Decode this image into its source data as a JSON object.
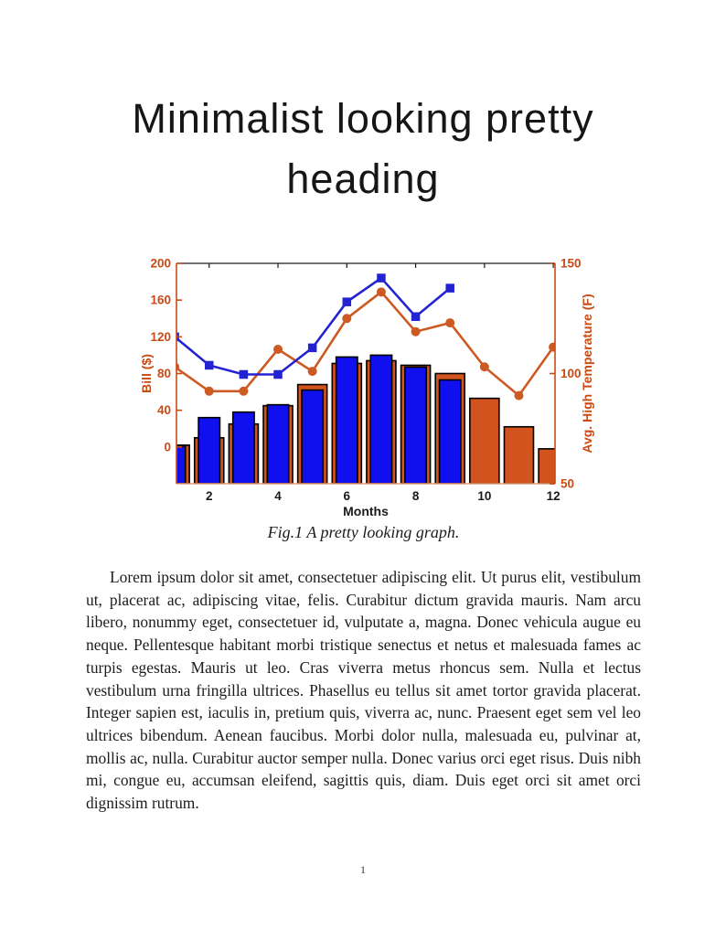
{
  "page": {
    "number": "1"
  },
  "heading": {
    "text": "Minimalist looking pretty heading",
    "lines": [
      "Minimalist looking pretty",
      "heading"
    ]
  },
  "figure": {
    "caption": "Fig.1 A pretty looking graph."
  },
  "chart_data": {
    "type": "bar",
    "subtype": "combo-bar-line-dual-axis",
    "x": [
      1,
      2,
      3,
      4,
      5,
      6,
      7,
      8,
      9,
      10,
      11,
      12
    ],
    "xlabel": "Months",
    "x_ticks": [
      2,
      4,
      6,
      8,
      10,
      12
    ],
    "xlim": [
      1.05,
      12.05
    ],
    "grid": false,
    "legend": "none",
    "left_axis": {
      "label": "Bill ($)",
      "ticks": [
        0,
        40,
        80,
        120,
        160,
        200
      ],
      "lim": [
        -40,
        200
      ],
      "color": "#cc4a14"
    },
    "right_axis": {
      "label": "Avg. High Temperature (F)",
      "ticks": [
        50,
        100,
        150
      ],
      "lim": [
        50,
        150
      ],
      "color": "#cc4a14"
    },
    "series": [
      {
        "name": "orange-bars",
        "type": "bar",
        "axis": "left",
        "color": "#d2531d",
        "edge_color": "#000000",
        "bar_width_months": 0.85,
        "values": [
          2,
          10,
          25,
          45,
          68,
          91,
          94,
          89,
          80,
          53,
          22,
          -2
        ]
      },
      {
        "name": "blue-bars",
        "type": "bar",
        "axis": "left",
        "color": "#1010ee",
        "edge_color": "#000000",
        "bar_width_months": 0.62,
        "values": [
          1,
          32,
          38,
          46,
          62,
          98,
          100,
          87,
          73,
          null,
          null,
          null
        ]
      },
      {
        "name": "orange-line",
        "type": "line",
        "axis": "right",
        "color": "#cc5a22",
        "marker": "circle",
        "marker_size": 5,
        "values": [
          103,
          92,
          92,
          111,
          101,
          125,
          137,
          119,
          123,
          103,
          90,
          112
        ]
      },
      {
        "name": "blue-line",
        "type": "line",
        "axis": "left",
        "color": "#2323d2",
        "marker": "square",
        "marker_size": 9.5,
        "values": [
          120,
          89,
          79,
          79,
          108,
          158,
          184,
          142,
          173,
          null,
          null,
          null
        ]
      }
    ],
    "spine_colors": {
      "left": "#cc4a14",
      "right": "#cc4a14",
      "top": "#1a1a1a",
      "bottom": "#e59a6e"
    }
  },
  "body": {
    "paragraph": "Lorem ipsum dolor sit amet, consectetuer adipiscing elit. Ut purus elit, vestibulum ut, placerat ac, adipiscing vitae, felis. Curabitur dictum gravida mauris. Nam arcu libero, nonummy eget, consectetuer id, vulputate a, magna. Donec vehicula augue eu neque. Pellentesque habitant morbi tristique senectus et netus et malesuada fames ac turpis egestas. Mauris ut leo. Cras viverra metus rhoncus sem. Nulla et lectus vestibulum urna fringilla ultrices. Phasellus eu tellus sit amet tortor gravida placerat. Integer sapien est, iaculis in, pretium quis, viverra ac, nunc. Praesent eget sem vel leo ultrices bibendum. Aenean faucibus. Morbi dolor nulla, malesuada eu, pulvinar at, mollis ac, nulla. Curabitur auctor semper nulla. Donec varius orci eget risus. Duis nibh mi, congue eu, accumsan eleifend, sagittis quis, diam. Duis eget orci sit amet orci dignissim rutrum."
  }
}
